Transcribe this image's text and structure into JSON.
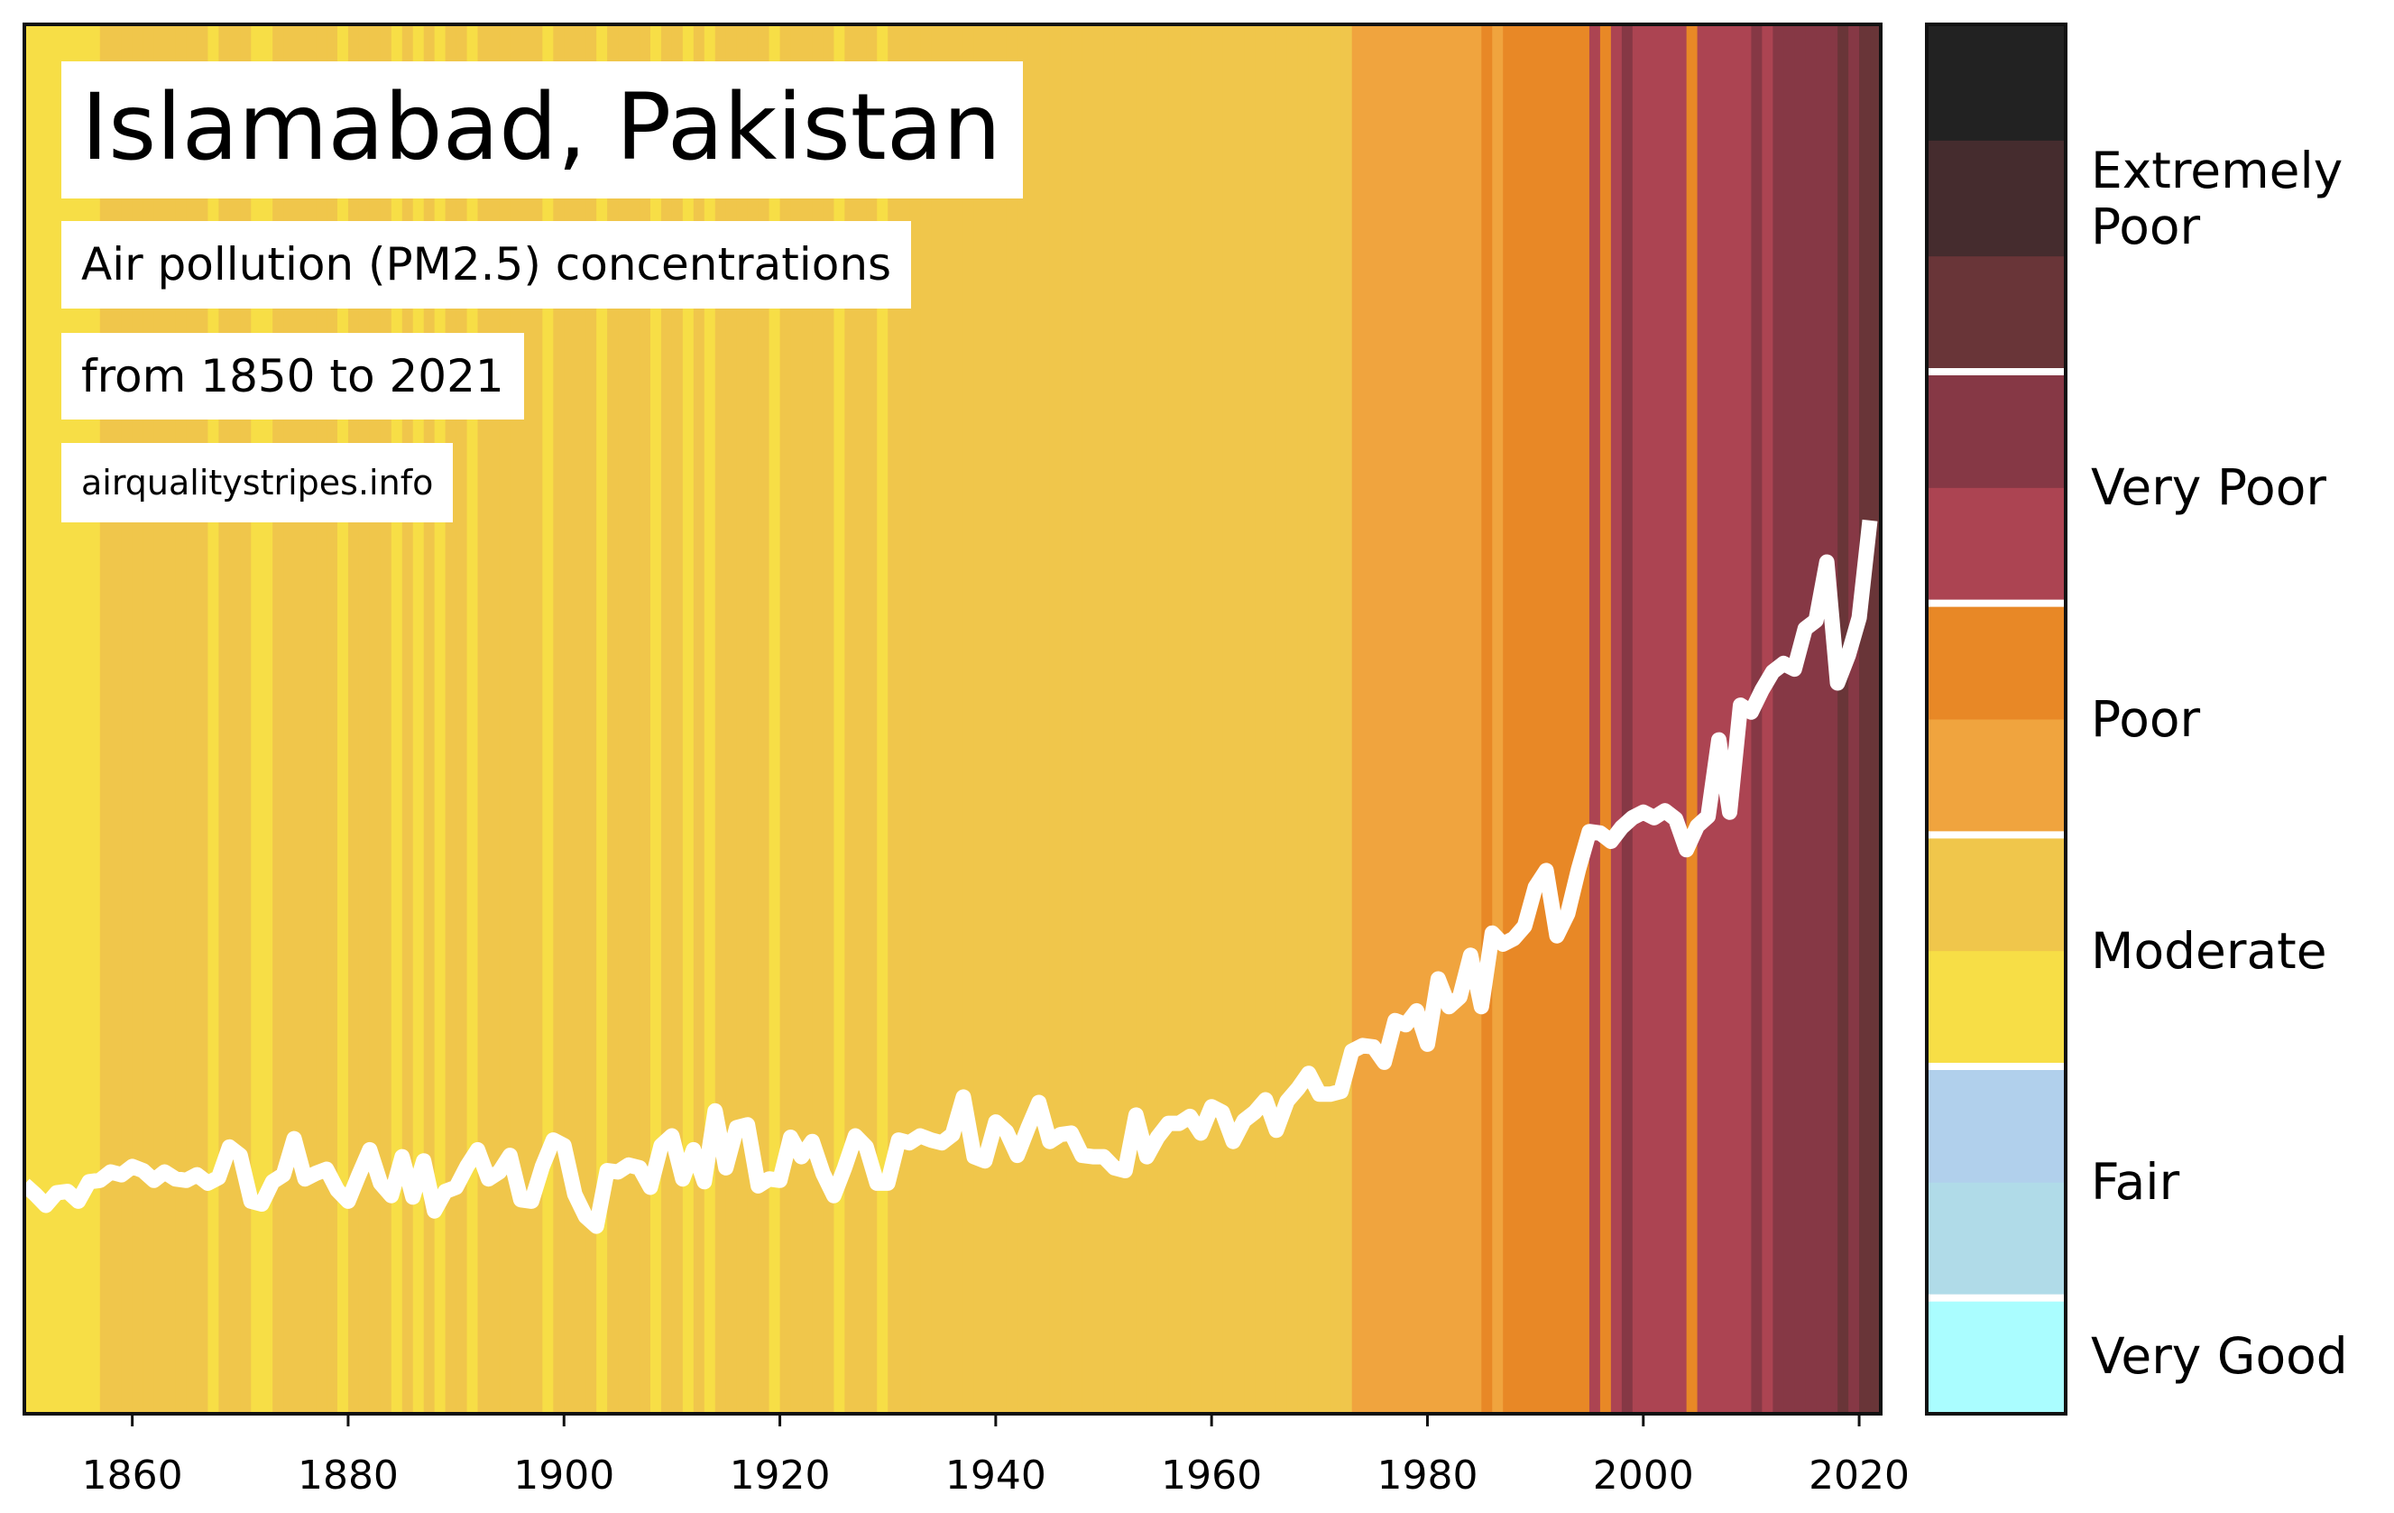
{
  "chart_data": {
    "type": "stripes",
    "title": "Islamabad, Pakistan",
    "subtitle": "Air pollution (PM2.5) concentrations",
    "period": "from 1850 to 2021",
    "source": "airqualitystripes.info",
    "xlim": [
      1850,
      2022
    ],
    "xticks": [
      1860,
      1880,
      1900,
      1920,
      1940,
      1960,
      1980,
      2000,
      2020
    ],
    "ylim": [
      0,
      100
    ],
    "line_color": "#ffffff",
    "x": [
      1850,
      1851,
      1852,
      1853,
      1854,
      1855,
      1856,
      1857,
      1858,
      1859,
      1860,
      1861,
      1862,
      1863,
      1864,
      1865,
      1866,
      1867,
      1868,
      1869,
      1870,
      1871,
      1872,
      1873,
      1874,
      1875,
      1876,
      1877,
      1878,
      1879,
      1880,
      1881,
      1882,
      1883,
      1884,
      1885,
      1886,
      1887,
      1888,
      1889,
      1890,
      1891,
      1892,
      1893,
      1894,
      1895,
      1896,
      1897,
      1898,
      1899,
      1900,
      1901,
      1902,
      1903,
      1904,
      1905,
      1906,
      1907,
      1908,
      1909,
      1910,
      1911,
      1912,
      1913,
      1914,
      1915,
      1916,
      1917,
      1918,
      1919,
      1920,
      1921,
      1922,
      1923,
      1924,
      1925,
      1926,
      1927,
      1928,
      1929,
      1930,
      1931,
      1932,
      1933,
      1934,
      1935,
      1936,
      1937,
      1938,
      1939,
      1940,
      1941,
      1942,
      1943,
      1944,
      1945,
      1946,
      1947,
      1948,
      1949,
      1950,
      1951,
      1952,
      1953,
      1954,
      1955,
      1956,
      1957,
      1958,
      1959,
      1960,
      1961,
      1962,
      1963,
      1964,
      1965,
      1966,
      1967,
      1968,
      1969,
      1970,
      1971,
      1972,
      1973,
      1974,
      1975,
      1976,
      1977,
      1978,
      1979,
      1980,
      1981,
      1982,
      1983,
      1984,
      1985,
      1986,
      1987,
      1988,
      1989,
      1990,
      1991,
      1992,
      1993,
      1994,
      1995,
      1996,
      1997,
      1998,
      1999,
      2000,
      2001,
      2002,
      2003,
      2004,
      2005,
      2006,
      2007,
      2008,
      2009,
      2010,
      2011,
      2012,
      2013,
      2014,
      2015,
      2016,
      2017,
      2018,
      2019,
      2020,
      2021
    ],
    "values": [
      16.5,
      15.8,
      15,
      15.9,
      16,
      15.3,
      16.7,
      16.8,
      17.4,
      17.2,
      17.8,
      17.5,
      16.8,
      17.4,
      16.9,
      16.8,
      17.2,
      16.6,
      17,
      19.2,
      18.6,
      15.3,
      15.1,
      16.7,
      17.2,
      19.8,
      16.9,
      17.3,
      17.6,
      16.1,
      15.3,
      17.2,
      19,
      16.6,
      15.7,
      18.5,
      15.6,
      18.2,
      14.6,
      16,
      16.3,
      17.8,
      19,
      16.9,
      17.4,
      18.6,
      15.4,
      15.3,
      17.8,
      19.7,
      19.3,
      15.8,
      14.2,
      13.5,
      17.5,
      17.4,
      17.9,
      17.7,
      16.3,
      19.3,
      20,
      16.9,
      19,
      16.7,
      21.8,
      17.7,
      20.6,
      20.8,
      16.4,
      16.9,
      16.8,
      19.9,
      18.5,
      19.6,
      17.3,
      15.7,
      17.7,
      20,
      19.2,
      16.6,
      16.6,
      19.7,
      19.5,
      20,
      19.7,
      19.5,
      20.1,
      22.8,
      18.5,
      18.2,
      21,
      20.3,
      18.6,
      20.6,
      22.4,
      19.6,
      20.1,
      20.2,
      18.6,
      18.5,
      18.5,
      17.7,
      17.5,
      21.5,
      18.5,
      19.9,
      20.9,
      20.9,
      21.4,
      20.2,
      22.1,
      21.7,
      19.6,
      21.1,
      21.7,
      22.6,
      20.4,
      22.5,
      23.4,
      24.5,
      23,
      23,
      23.2,
      26.1,
      26.5,
      26.4,
      25.3,
      28.3,
      28,
      29,
      26.6,
      31.3,
      29.3,
      30,
      33,
      29.3,
      34.6,
      33.8,
      34.2,
      35.1,
      37.9,
      39.1,
      34.4,
      36,
      39.2,
      41.9,
      41.8,
      41.2,
      42.2,
      42.9,
      43.3,
      42.9,
      43.4,
      42.8,
      40.6,
      42.3,
      43,
      48.5,
      43.3,
      51,
      50.5,
      52.1,
      53.4,
      54,
      53.6,
      56.5,
      57.1,
      61.3,
      52.6,
      54.6,
      57.3,
      64.3
    ],
    "stripe_levels": [
      3,
      3,
      3,
      3,
      3,
      3,
      3,
      4,
      4,
      4,
      4,
      4,
      4,
      4,
      4,
      4,
      4,
      3,
      4,
      4,
      4,
      3,
      3,
      4,
      4,
      4,
      4,
      4,
      4,
      3,
      4,
      4,
      4,
      4,
      3,
      4,
      3,
      4,
      3,
      4,
      4,
      3,
      4,
      4,
      4,
      4,
      4,
      4,
      3,
      4,
      4,
      4,
      4,
      3,
      4,
      4,
      4,
      4,
      3,
      4,
      4,
      3,
      4,
      3,
      4,
      4,
      4,
      4,
      4,
      3,
      4,
      4,
      4,
      4,
      4,
      3,
      4,
      4,
      4,
      3,
      4,
      4,
      4,
      4,
      4,
      4,
      4,
      4,
      4,
      4,
      4,
      4,
      4,
      4,
      4,
      4,
      4,
      4,
      4,
      4,
      4,
      4,
      4,
      4,
      4,
      4,
      4,
      4,
      4,
      4,
      4,
      4,
      4,
      4,
      4,
      4,
      4,
      4,
      4,
      4,
      4,
      4,
      4,
      5,
      5,
      5,
      5,
      5,
      5,
      5,
      5,
      5,
      5,
      5,
      5,
      6,
      5,
      6,
      6,
      6,
      6,
      6,
      6,
      6,
      6,
      7,
      6,
      7,
      8,
      7,
      7,
      7,
      7,
      7,
      6,
      7,
      7,
      7,
      7,
      7,
      8,
      7,
      8,
      8,
      8,
      8,
      8,
      8,
      9,
      8,
      9,
      9
    ],
    "colorbar": {
      "colors": [
        "#aafdff",
        "#b0dbe8",
        "#b1d0ec",
        "#f7de46",
        "#f0c64b",
        "#f0a43e",
        "#e88826",
        "#ac4452",
        "#863845",
        "#693538",
        "#452c2e",
        "#222222"
      ],
      "bounds": [
        0,
        1,
        3,
        5,
        7,
        9,
        12
      ],
      "labels": [
        "Very Good",
        "Fair",
        "Moderate",
        "Poor",
        "Very Poor",
        "Extremely Poor"
      ]
    }
  }
}
